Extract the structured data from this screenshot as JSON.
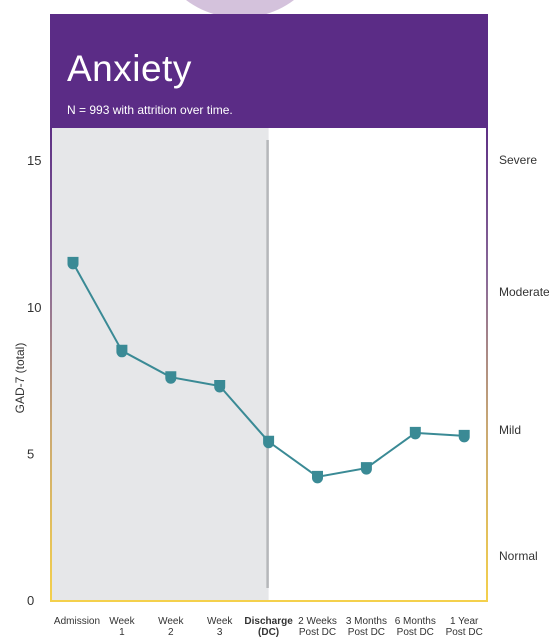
{
  "header": {
    "title": "Anxiety",
    "subtitle": "N = 993 with attrition over time."
  },
  "colors": {
    "header": "#5b2c86",
    "line": "#3a8a95",
    "shade": "#e6e7e9",
    "divider": "#b5b7ba"
  },
  "severity_labels": [
    {
      "label": "Severe",
      "value": 15
    },
    {
      "label": "Moderate",
      "value": 10.5
    },
    {
      "label": "Mild",
      "value": 5.8
    },
    {
      "label": "Normal",
      "value": 1.5
    }
  ],
  "chart_data": {
    "type": "line",
    "title": "Anxiety",
    "subtitle": "N = 993 with attrition over time.",
    "ylabel": "GAD-7 (total)",
    "xlabel": "",
    "ylim": [
      0,
      16.1
    ],
    "yticks": [
      0,
      5,
      10,
      15
    ],
    "grid": false,
    "categories": [
      [
        "Admission"
      ],
      [
        "Week",
        "1"
      ],
      [
        "Week",
        "2"
      ],
      [
        "Week",
        "3"
      ],
      [
        "Discharge",
        "(DC)"
      ],
      [
        "2 Weeks",
        "Post DC"
      ],
      [
        "3 Months",
        "Post DC"
      ],
      [
        "6 Months",
        "Post DC"
      ],
      [
        "1 Year",
        "Post DC"
      ]
    ],
    "bold_category_index": 4,
    "series": [
      {
        "values": [
          11.5,
          8.5,
          7.6,
          7.3,
          5.4,
          4.2,
          4.5,
          5.7,
          5.6
        ]
      }
    ]
  }
}
